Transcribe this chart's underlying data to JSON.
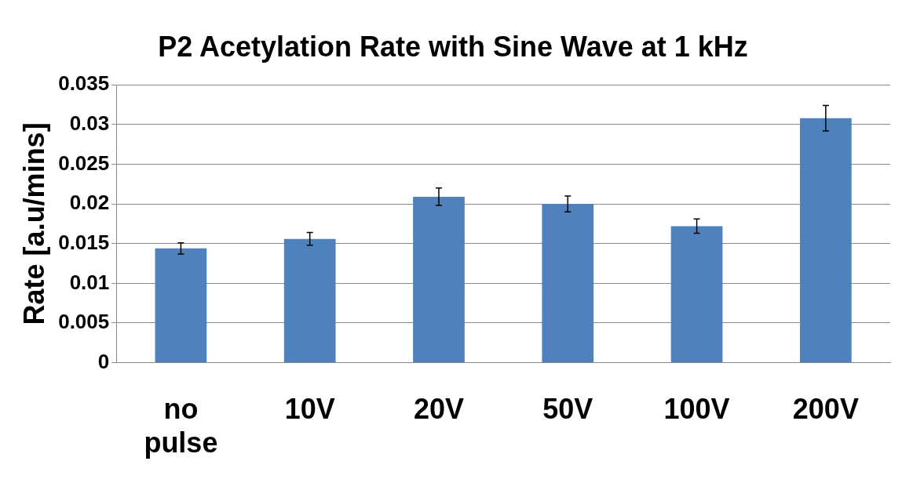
{
  "chart_data": {
    "type": "bar",
    "title": "P2 Acetylation Rate with Sine Wave at 1 kHz",
    "ylabel": "Rate [a.u/mins]",
    "categories": [
      "no pulse",
      "10V",
      "20V",
      "50V",
      "100V",
      "200V"
    ],
    "values": [
      0.0144,
      0.0156,
      0.0209,
      0.02,
      0.0172,
      0.0308
    ],
    "errors": [
      0.0007,
      0.0008,
      0.0011,
      0.001,
      0.0009,
      0.0016
    ],
    "color": "#4f81bd",
    "ylim": [
      0,
      0.035
    ],
    "yticks": [
      0,
      0.005,
      0.01,
      0.015,
      0.02,
      0.025,
      0.03,
      0.035
    ],
    "grid": "y",
    "legend": false
  }
}
